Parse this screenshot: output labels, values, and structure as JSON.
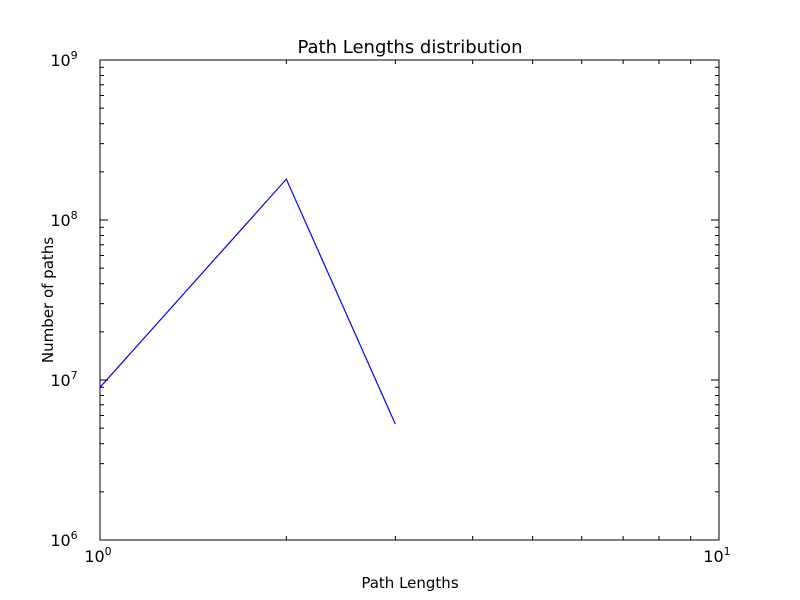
{
  "chart_data": {
    "type": "line",
    "title": "Path Lengths distribution",
    "xlabel": "Path Lengths",
    "ylabel": "Number of paths",
    "xscale": "log",
    "yscale": "log",
    "xlim": [
      1,
      10
    ],
    "ylim": [
      1000000,
      1000000000
    ],
    "grid": false,
    "line_color": "#0000ff",
    "x_ticks": [
      {
        "base": "10",
        "exp": "0",
        "value": 1
      },
      {
        "base": "10",
        "exp": "1",
        "value": 10
      }
    ],
    "y_ticks": [
      {
        "base": "10",
        "exp": "6",
        "value": 1000000
      },
      {
        "base": "10",
        "exp": "7",
        "value": 10000000
      },
      {
        "base": "10",
        "exp": "8",
        "value": 100000000
      },
      {
        "base": "10",
        "exp": "9",
        "value": 1000000000
      }
    ],
    "series": [
      {
        "x": [
          1,
          2,
          3
        ],
        "y": [
          9000000,
          180000000,
          5300000
        ]
      }
    ]
  }
}
